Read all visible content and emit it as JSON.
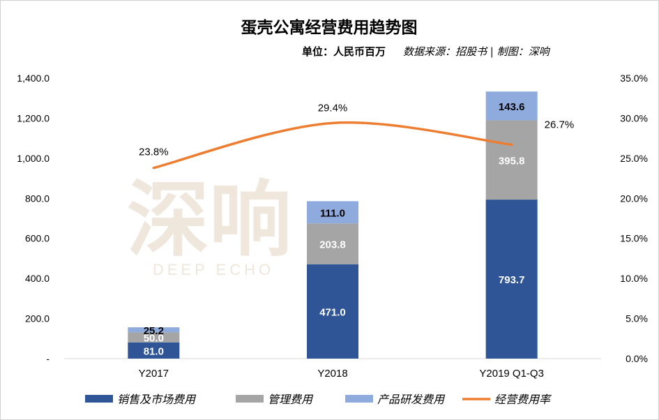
{
  "chart_data": {
    "type": "bar",
    "stacked": true,
    "title": "蛋壳公寓经营费用趋势图",
    "unit_label": "单位：人民币百万",
    "source_label": "数据来源：招股书 | 制图：深响",
    "watermark": {
      "cn": "深响",
      "en": "DEEP ECHO"
    },
    "categories": [
      "Y2017",
      "Y2018",
      "Y2019 Q1-Q3"
    ],
    "series": [
      {
        "name": "销售及市场费用",
        "color": "#2f5597",
        "values": [
          81.0,
          471.0,
          793.7
        ],
        "labels": [
          "81.0",
          "471.0",
          "793.7"
        ],
        "label_color": "#ffffff"
      },
      {
        "name": "管理费用",
        "color": "#a5a5a5",
        "values": [
          50.0,
          203.8,
          395.8
        ],
        "labels": [
          "50.0",
          "203.8",
          "395.8"
        ],
        "label_color": "#ffffff"
      },
      {
        "name": "产品研发费用",
        "color": "#8faadc",
        "values": [
          25.2,
          111.0,
          143.6
        ],
        "labels": [
          "25.2",
          "111.0",
          "143.6"
        ],
        "label_color": "#000000"
      }
    ],
    "line": {
      "name": "经营费用率",
      "color": "#ed7d31",
      "axis": "right",
      "values": [
        23.8,
        29.4,
        26.7
      ],
      "labels": [
        "23.8%",
        "29.4%",
        "26.7%"
      ]
    },
    "y_left": {
      "min": 0,
      "max": 1400,
      "step": 200,
      "ticks": [
        "-",
        "200.0",
        "400.0",
        "600.0",
        "800.0",
        "1,000.0",
        "1,200.0",
        "1,400.0"
      ]
    },
    "y_right": {
      "min": 0,
      "max": 35,
      "step": 5,
      "ticks": [
        "0.0%",
        "5.0%",
        "10.0%",
        "15.0%",
        "20.0%",
        "25.0%",
        "30.0%",
        "35.0%"
      ]
    },
    "legend_position": "bottom"
  }
}
